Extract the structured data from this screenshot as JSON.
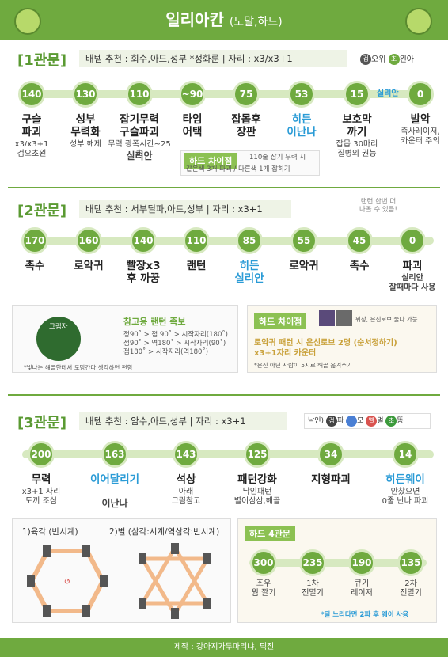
{
  "header": {
    "title": "일리아칸",
    "subtitle": "(노말,하드)"
  },
  "g1": {
    "title": "[1관문]",
    "rec": "배템 추천 : 회수,아드,성부 *정화룬  | 자리 : x3/x3+1",
    "legend": {
      "a_icon": "검",
      "a_text": "오위",
      "b_icon": "초",
      "b_text": "왼아"
    },
    "top_tag": "실리안",
    "nodes": [
      {
        "num": "140",
        "label": "구슬\n파괴",
        "sub": "x3/x3+1\n검오초왼"
      },
      {
        "num": "130",
        "label": "성부\n무력화",
        "sub": "성부   해제"
      },
      {
        "num": "110",
        "label": "잡기무력\n구슬파괴",
        "sub": "무력 광폭시간~25초",
        "sub2": "실리안"
      },
      {
        "num": "~90",
        "label": "타임\n어택",
        "sub": ""
      },
      {
        "num": "75",
        "label": "잡몹후\n장판",
        "sub": ""
      },
      {
        "num": "53",
        "label": "히든\n이난나",
        "sub": ""
      },
      {
        "num": "15",
        "label": "보호막\n까기",
        "sub": "잡몹 30마리\n질병의 권능"
      },
      {
        "num": "0",
        "label": "발악",
        "sub": "즉사레이저,\n카운터 주의"
      }
    ],
    "hard": {
      "tag": "하드 차이점",
      "line1": "110줄 잡기 무력 시",
      "line2": "같은색 3개 파괴 / 다른색 1개 잡히기"
    }
  },
  "g2": {
    "title": "[2관문]",
    "rec": "배템 추천 : 서부딜파,아드,성부  | 자리 : x3+1",
    "bubble": "랜턴 한번 더\n나올 수 있음!",
    "nodes": [
      {
        "num": "170",
        "label": "촉수"
      },
      {
        "num": "160",
        "label": "로악귀"
      },
      {
        "num": "140",
        "label": "빨장x3\n후 까꿍"
      },
      {
        "num": "110",
        "label": "랜턴"
      },
      {
        "num": "85",
        "label": "히든\n실리안"
      },
      {
        "num": "55",
        "label": "로악귀"
      },
      {
        "num": "45",
        "label": "촉수"
      },
      {
        "num": "0",
        "label": "파괴",
        "sub": "실리안\n잘때마다 사용"
      }
    ],
    "lantern": {
      "title": "참고용 랜턴 족보",
      "lines": [
        "정90˚ > 점 90˚ > 시작자리(180˚)",
        "점90˚ > 역180˚ > 시작자리(90˚)",
        "점180˚ > 시작자리(역180˚)"
      ],
      "note": "*빛나는 해골한테서 도망간다 생각하면 편함",
      "center": "그림자"
    },
    "hard": {
      "tag": "하드 차이점",
      "icon_note": "위장, 은신로브 둘다 가능",
      "line1": "로악귀 패턴 시 은신로브 2명 (순서정하기)",
      "line2": "x3+1자리 카운터",
      "note": "*은신 아닌 사람이 5시로 해골 옮겨주기"
    }
  },
  "g3": {
    "title": "[3관문]",
    "rec": "배템 추천 : 암수,아드,성부  | 자리 : x3+1",
    "legend": {
      "prefix": "낙인)",
      "items": [
        {
          "i": "검",
          "t": "파"
        },
        {
          "i": "",
          "t": "모"
        },
        {
          "i": "빨",
          "t": "멀"
        },
        {
          "i": "초",
          "t": "똥"
        }
      ]
    },
    "nodes": [
      {
        "num": "200",
        "label": "무력",
        "sub": "x3+1 자리\n도끼 조심"
      },
      {
        "num": "163",
        "label": "이어달리기",
        "sub": "",
        "sub2": "이난나"
      },
      {
        "num": "143",
        "label": "석상",
        "sub": "아래\n그림참고"
      },
      {
        "num": "125",
        "label": "패턴강화",
        "sub": "낙인패턴\n별이삼삼,해골"
      },
      {
        "num": "34",
        "label": "지형파괴",
        "sub": ""
      },
      {
        "num": "14",
        "label": "히든웨이",
        "sub": "안찼으면\n0줄 난나 파괴"
      }
    ],
    "diag1": "1)육각 (반시계)",
    "diag2": "2)별 (삼각:시계/역삼각:반시계)",
    "hard4": {
      "tag": "하드 4관문",
      "nodes": [
        {
          "num": "300",
          "label": "조우\n웜 깔기"
        },
        {
          "num": "235",
          "label": "1차\n전멸기"
        },
        {
          "num": "190",
          "label": "큐기\n레이저"
        },
        {
          "num": "135",
          "label": "2차\n전멸기"
        }
      ],
      "note": "*딜 느리다면 2파 후 웨이 사용"
    }
  },
  "footer": "제작 : 강아지가두마리냐, 딕진"
}
